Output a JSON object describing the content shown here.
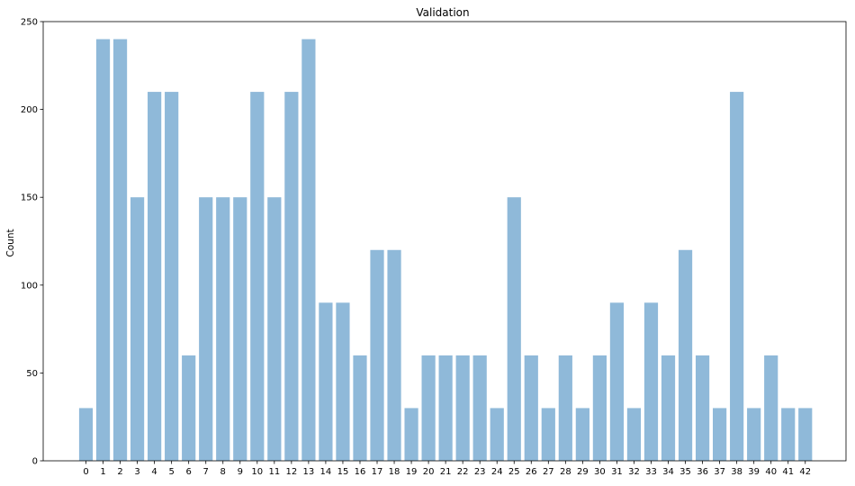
{
  "chart_data": {
    "type": "bar",
    "title": "Validation",
    "xlabel": "",
    "ylabel": "Count",
    "ylim": [
      0,
      250
    ],
    "yticks": [
      "0",
      "50",
      "100",
      "150",
      "200",
      "250"
    ],
    "grid": false,
    "categories": [
      "0",
      "1",
      "2",
      "3",
      "4",
      "5",
      "6",
      "7",
      "8",
      "9",
      "10",
      "11",
      "12",
      "13",
      "14",
      "15",
      "16",
      "17",
      "18",
      "19",
      "20",
      "21",
      "22",
      "23",
      "24",
      "25",
      "26",
      "27",
      "28",
      "29",
      "30",
      "31",
      "32",
      "33",
      "34",
      "35",
      "36",
      "37",
      "38",
      "39",
      "40",
      "41",
      "42"
    ],
    "values": [
      30,
      240,
      240,
      150,
      210,
      210,
      60,
      150,
      150,
      150,
      210,
      150,
      210,
      240,
      90,
      90,
      60,
      120,
      120,
      30,
      60,
      60,
      60,
      60,
      30,
      150,
      60,
      30,
      60,
      30,
      60,
      90,
      30,
      90,
      60,
      120,
      60,
      30,
      210,
      30,
      60,
      30,
      30
    ],
    "colors": {
      "bar": "#8fb9d9",
      "axis": "#000000",
      "background": "#ffffff"
    }
  }
}
